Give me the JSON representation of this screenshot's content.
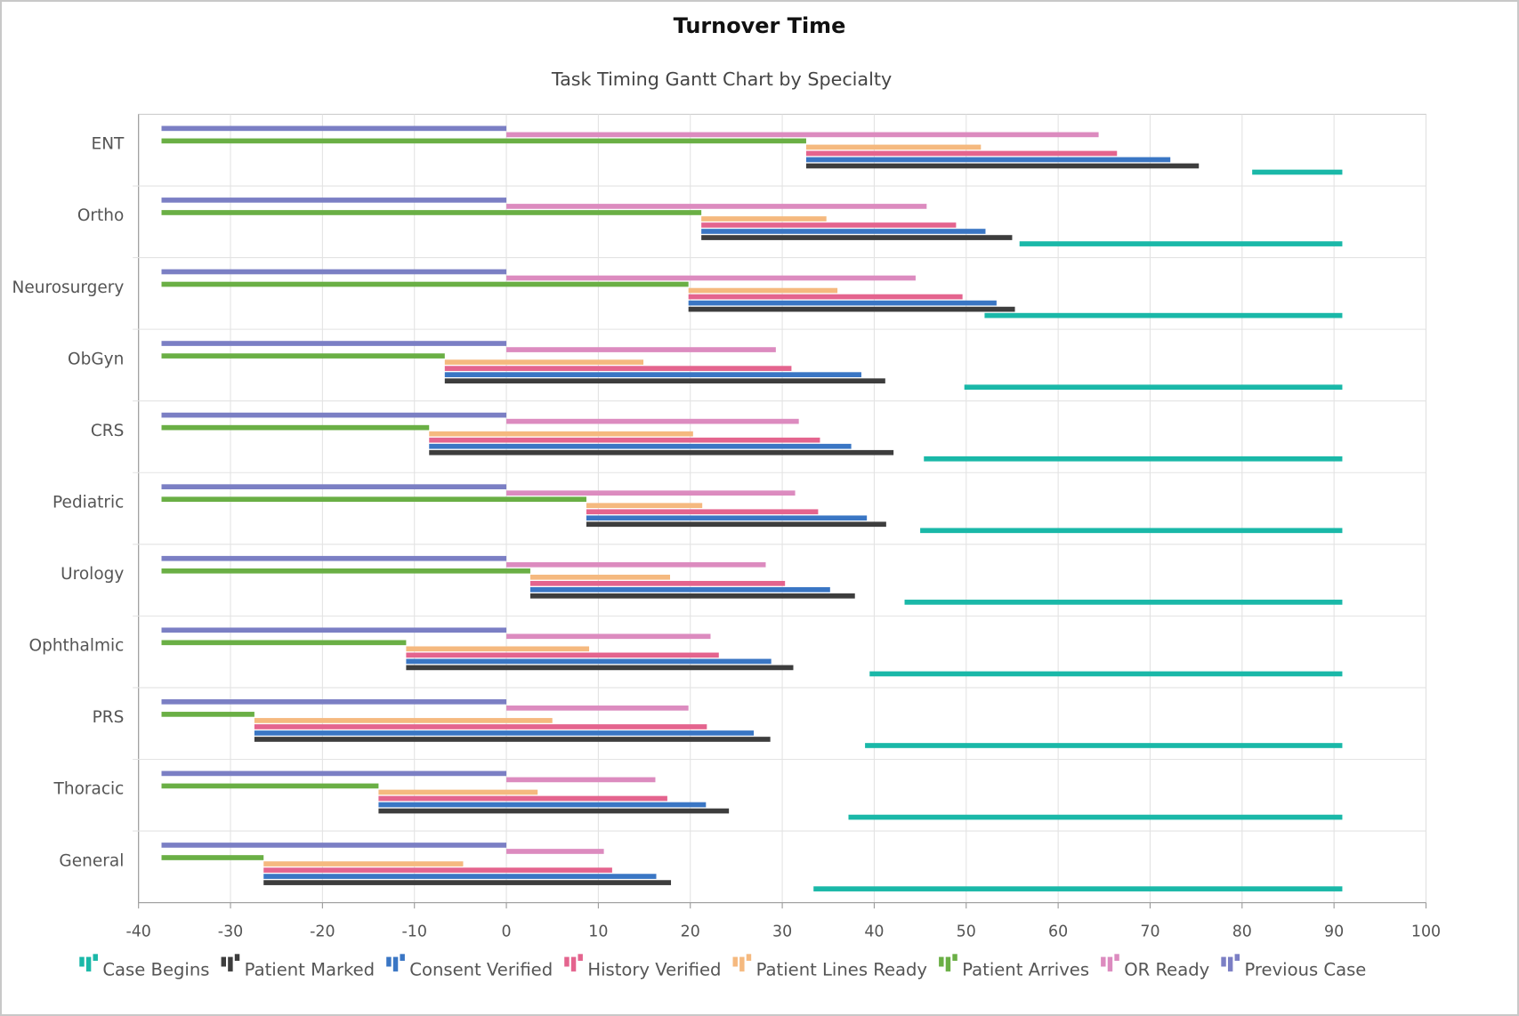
{
  "chart_data": {
    "type": "bar",
    "orientation": "horizontal-gantt",
    "title": "Turnover Time",
    "subtitle": "Task Timing Gantt Chart by Specialty",
    "xlabel": "",
    "ylabel": "",
    "xlim": [
      -40,
      100
    ],
    "xticks": [
      "-40",
      "-30",
      "-20",
      "-10",
      "0",
      "10",
      "20",
      "30",
      "40",
      "50",
      "60",
      "70",
      "80",
      "90",
      "100"
    ],
    "grid": true,
    "legend_position": "bottom",
    "categories": [
      "ENT",
      "Ortho",
      "Neurosurgery",
      "ObGyn",
      "CRS",
      "Pediatric",
      "Urology",
      "Ophthalmic",
      "PRS",
      "Thoracic",
      "General"
    ],
    "series": [
      {
        "name": "Previous Case",
        "color": "#7b7fc4",
        "start": [
          -37.5,
          -37.5,
          -37.5,
          -37.5,
          -37.5,
          -37.5,
          -37.5,
          -37.5,
          -37.5,
          -37.5,
          -37.5
        ],
        "end": [
          0,
          0,
          0,
          0,
          0,
          0,
          0,
          0,
          0,
          0,
          0
        ]
      },
      {
        "name": "OR Ready",
        "color": "#dc8bbf",
        "start": [
          0,
          0,
          0,
          0,
          0,
          0,
          0,
          0,
          0,
          0,
          0
        ],
        "end": [
          64.4,
          45.7,
          44.5,
          29.3,
          31.8,
          31.4,
          28.2,
          22.2,
          19.8,
          16.2,
          10.6
        ]
      },
      {
        "name": "Patient Arrives",
        "color": "#6aaf45",
        "start": [
          -37.5,
          -37.5,
          -37.5,
          -37.5,
          -37.5,
          -37.5,
          -37.5,
          -37.5,
          -37.5,
          -37.5,
          -37.5
        ],
        "end": [
          32.6,
          21.2,
          19.8,
          -6.7,
          -8.4,
          8.7,
          2.6,
          -10.9,
          -27.4,
          -13.9,
          -26.4
        ]
      },
      {
        "name": "Patient Lines Ready",
        "color": "#f5b97f",
        "start": [
          32.6,
          21.2,
          19.8,
          -6.7,
          -8.4,
          8.7,
          2.6,
          -10.9,
          -27.4,
          -13.9,
          -26.4
        ],
        "end": [
          51.6,
          34.8,
          36.0,
          14.9,
          20.3,
          21.3,
          17.8,
          9.0,
          5.0,
          3.4,
          -4.7
        ]
      },
      {
        "name": "History Verified",
        "color": "#e4648e",
        "start": [
          32.6,
          21.2,
          19.8,
          -6.7,
          -8.4,
          8.7,
          2.6,
          -10.9,
          -27.4,
          -13.9,
          -26.4
        ],
        "end": [
          66.4,
          48.9,
          49.6,
          31.0,
          34.1,
          33.9,
          30.3,
          23.1,
          21.8,
          17.5,
          11.5
        ]
      },
      {
        "name": "Consent Verified",
        "color": "#3a76c4",
        "start": [
          32.6,
          21.2,
          19.8,
          -6.7,
          -8.4,
          8.7,
          2.6,
          -10.9,
          -27.4,
          -13.9,
          -26.4
        ],
        "end": [
          72.2,
          52.1,
          53.3,
          38.6,
          37.5,
          39.2,
          35.2,
          28.8,
          26.9,
          21.7,
          16.3
        ]
      },
      {
        "name": "Patient Marked",
        "color": "#3d3d3d",
        "start": [
          32.6,
          21.2,
          19.8,
          -6.7,
          -8.4,
          8.7,
          2.6,
          -10.9,
          -27.4,
          -13.9,
          -26.4
        ],
        "end": [
          75.3,
          55.0,
          55.3,
          41.2,
          42.1,
          41.3,
          37.9,
          31.2,
          28.7,
          24.2,
          17.9
        ]
      },
      {
        "name": "Case Begins",
        "color": "#1ab8a8",
        "start": [
          81.1,
          55.8,
          52.0,
          49.8,
          45.4,
          45.0,
          43.3,
          39.5,
          39.0,
          37.2,
          33.4
        ],
        "end": [
          90.9,
          90.9,
          90.9,
          90.9,
          90.9,
          90.9,
          90.9,
          90.9,
          90.9,
          90.9,
          90.9
        ]
      }
    ],
    "legend_order": [
      "Case Begins",
      "Patient Marked",
      "Consent Verified",
      "History Verified",
      "Patient Lines Ready",
      "Patient Arrives",
      "OR Ready",
      "Previous Case"
    ]
  }
}
